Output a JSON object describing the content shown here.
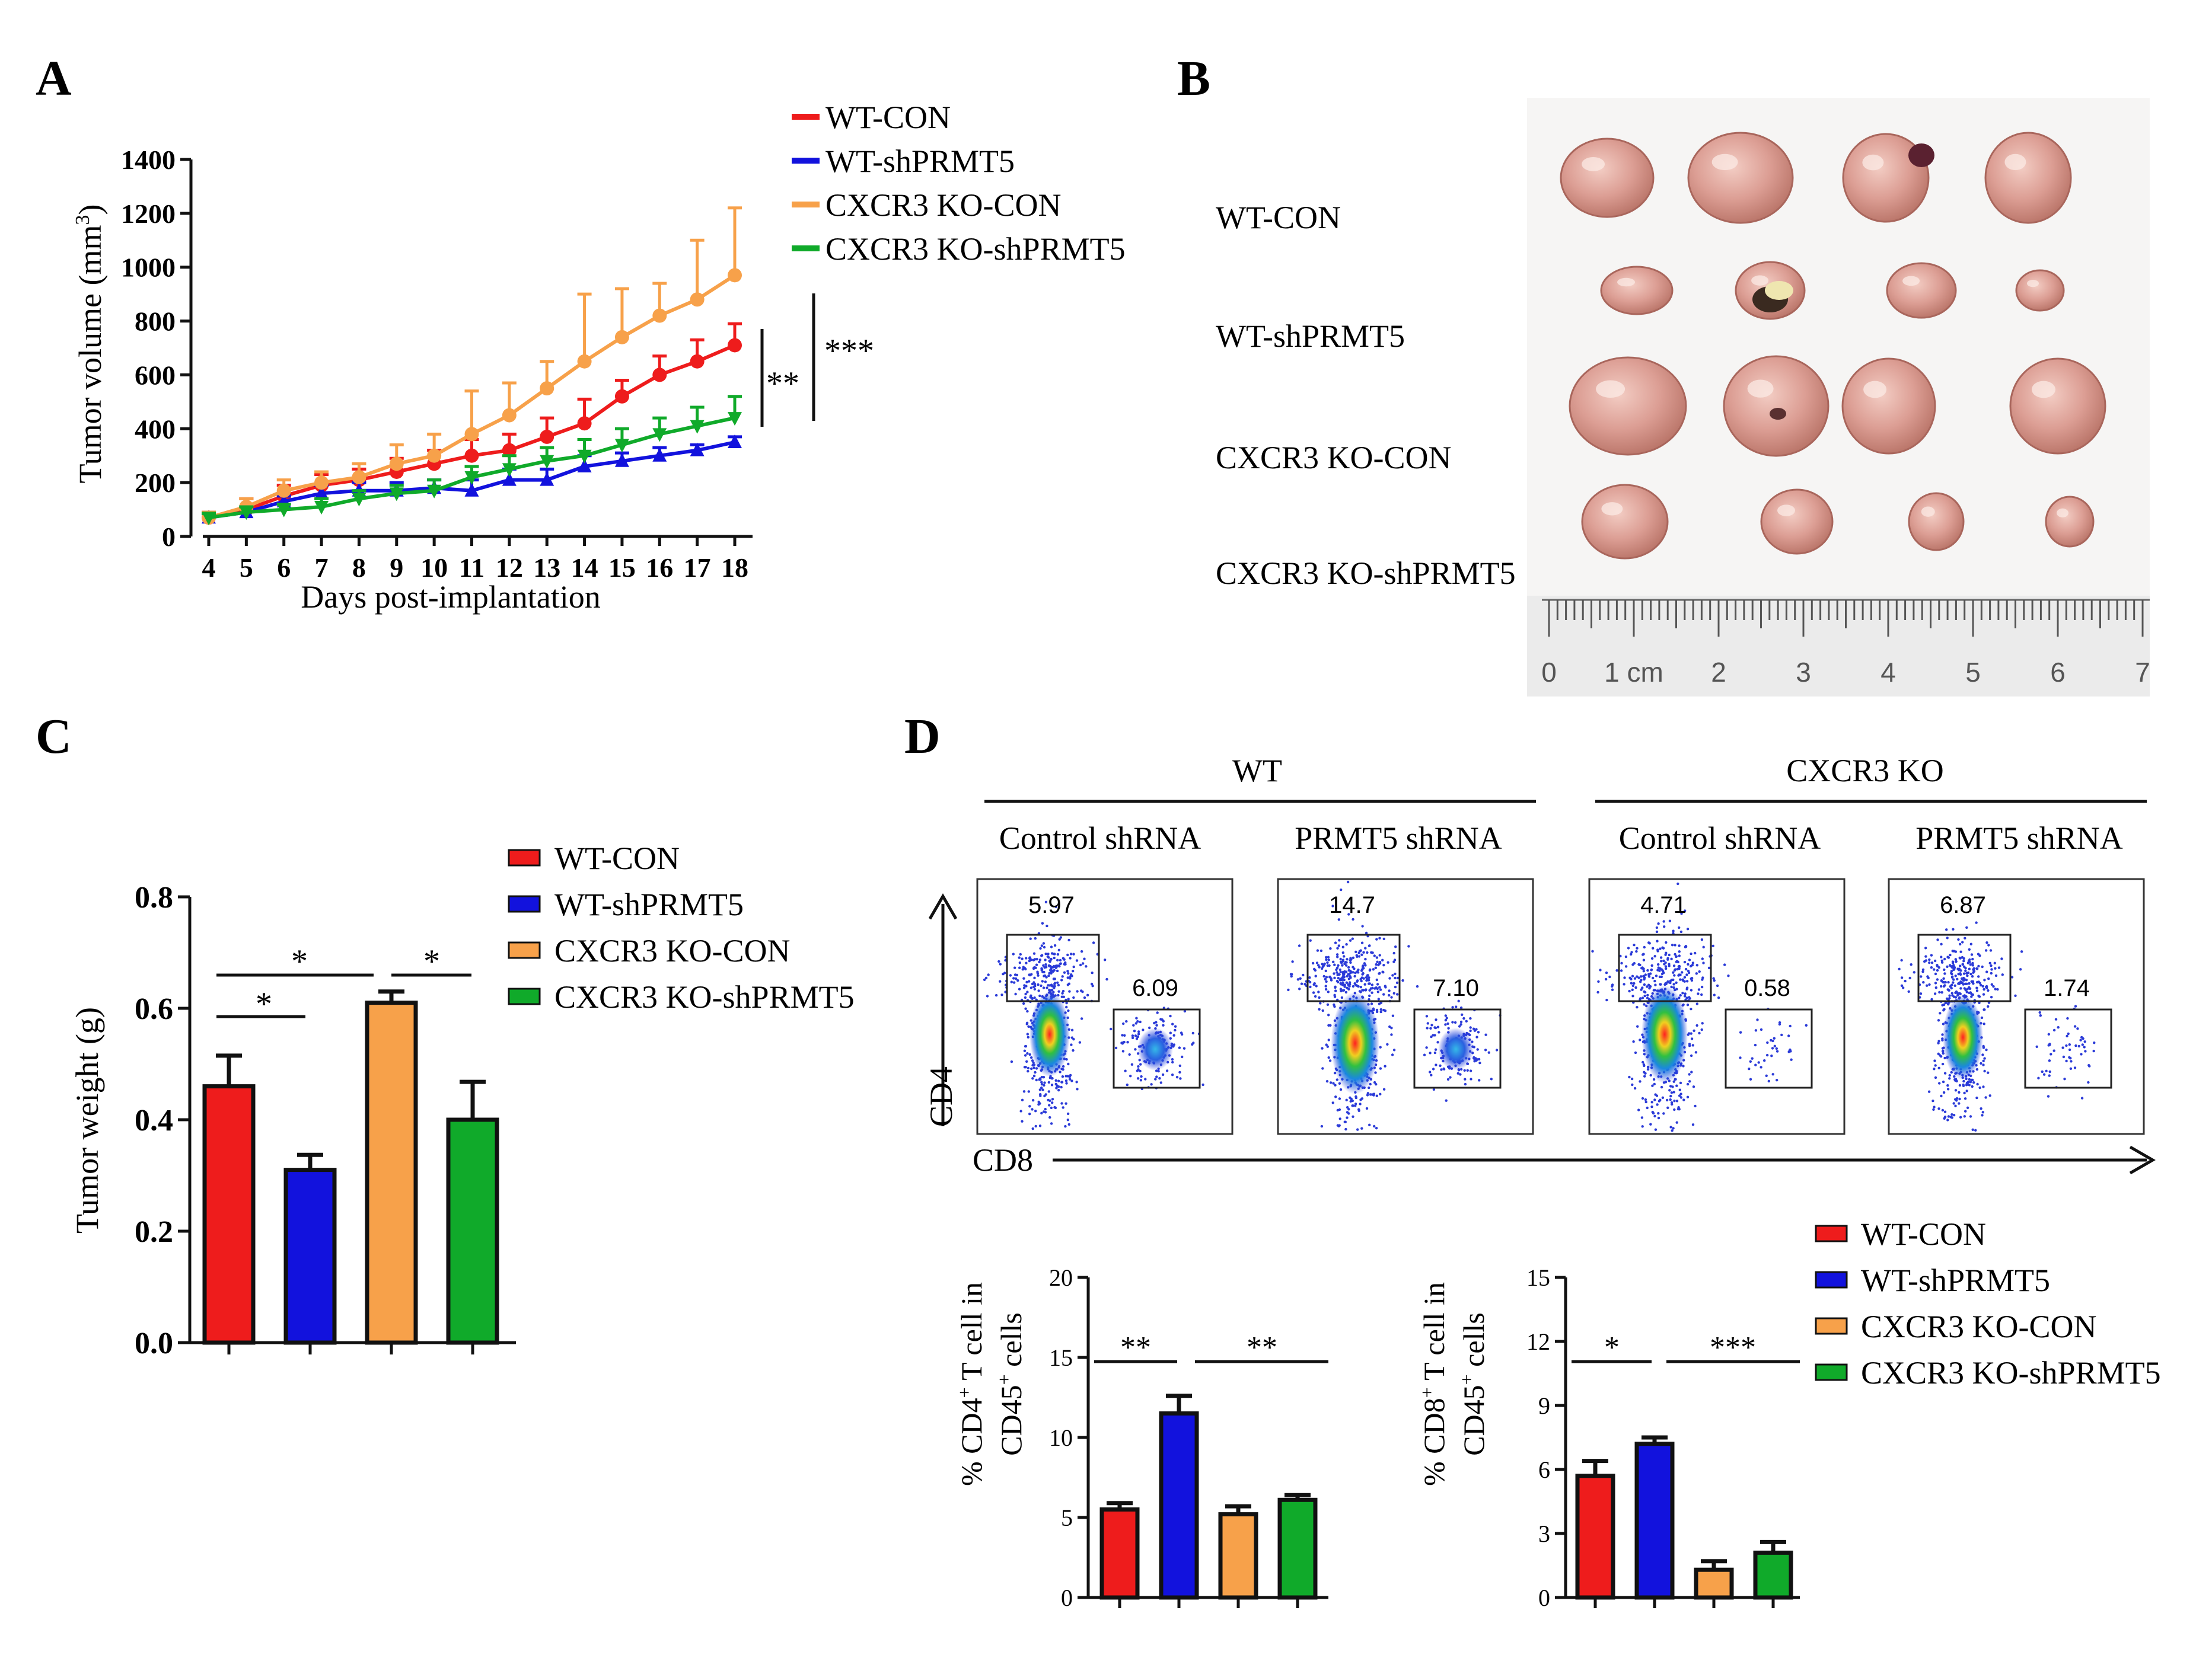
{
  "colors": {
    "wt_con": "#ee1c1c",
    "wt_sh": "#1212dd",
    "ko_con": "#f7a14a",
    "ko_sh": "#10aa2a",
    "axis": "#111111"
  },
  "panel_a": {
    "label": "A",
    "ylabel": "Tumor volume (mm",
    "ylabel_sup": "3",
    "ylabel_close": ")",
    "xlabel": "Days  post-implantation",
    "sig_inner": "**",
    "sig_outer": "***",
    "legend": [
      "WT-CON",
      "WT-shPRMT5",
      "CXCR3 KO-CON",
      "CXCR3 KO-shPRMT5"
    ]
  },
  "panel_b": {
    "label": "B",
    "rows": [
      "WT-CON",
      "WT-shPRMT5",
      "CXCR3 KO-CON",
      "CXCR3 KO-shPRMT5"
    ],
    "ruler_labels": [
      "0",
      "1 cm",
      "2",
      "3",
      "4",
      "5",
      "6",
      "7"
    ]
  },
  "panel_c": {
    "label": "C",
    "ylabel": "Tumor weight (g)",
    "sig": [
      "*",
      "*",
      "*"
    ],
    "legend": [
      "WT-CON",
      "WT-shPRMT5",
      "CXCR3 KO-CON",
      "CXCR3 KO-shPRMT5"
    ]
  },
  "panel_d": {
    "label": "D",
    "group_wt": "WT",
    "group_ko": "CXCR3 KO",
    "sub_labels": [
      "Control shRNA",
      "PRMT5 shRNA",
      "Control shRNA",
      "PRMT5 shRNA"
    ],
    "cd4_pct": [
      "5.97",
      "14.7",
      "4.71",
      "6.87"
    ],
    "cd8_pct": [
      "6.09",
      "7.10",
      "0.58",
      "1.74"
    ],
    "y_axis": "CD4",
    "x_axis": "CD8",
    "ylabel_cd4_a": "% CD4",
    "ylabel_cd4_b": " T cell in",
    "ylabel_cd8_a": "% CD8",
    "ylabel_cd8_b": " T cell in",
    "ylabel_line2_a": "CD45",
    "ylabel_line2_b": " cells",
    "sup_plus": "+",
    "sig_cd4": [
      "**",
      "**"
    ],
    "sig_cd8": [
      "*",
      "***"
    ],
    "legend": [
      "WT-CON",
      "WT-shPRMT5",
      "CXCR3 KO-CON",
      "CXCR3 KO-shPRMT5"
    ]
  },
  "chart_data": [
    {
      "id": "A",
      "type": "line",
      "xlabel": "Days  post-implantation",
      "ylabel": "Tumor volume (mm3)",
      "x": [
        4,
        5,
        6,
        7,
        8,
        9,
        10,
        11,
        12,
        13,
        14,
        15,
        16,
        17,
        18
      ],
      "ylim": [
        0,
        1400
      ],
      "yticks": [
        0,
        200,
        400,
        600,
        800,
        1000,
        1200,
        1400
      ],
      "series": [
        {
          "name": "WT-CON",
          "values": [
            70,
            100,
            150,
            190,
            210,
            240,
            270,
            300,
            320,
            370,
            420,
            520,
            600,
            650,
            710
          ],
          "errors": [
            20,
            40,
            40,
            40,
            40,
            50,
            50,
            60,
            60,
            70,
            90,
            60,
            70,
            80,
            80
          ]
        },
        {
          "name": "WT-shPRMT5",
          "values": [
            70,
            90,
            130,
            160,
            170,
            170,
            180,
            170,
            210,
            210,
            260,
            280,
            300,
            320,
            350
          ],
          "errors": [
            15,
            20,
            20,
            30,
            30,
            30,
            30,
            40,
            40,
            40,
            40,
            30,
            30,
            20,
            20
          ]
        },
        {
          "name": "CXCR3 KO-CON",
          "values": [
            70,
            110,
            170,
            200,
            220,
            270,
            300,
            380,
            450,
            550,
            650,
            740,
            820,
            880,
            970
          ],
          "errors": [
            20,
            30,
            40,
            40,
            50,
            70,
            80,
            160,
            120,
            100,
            250,
            180,
            120,
            220,
            250
          ]
        },
        {
          "name": "CXCR3 KO-shPRMT5",
          "values": [
            70,
            90,
            100,
            110,
            140,
            160,
            170,
            220,
            250,
            280,
            300,
            340,
            380,
            410,
            440
          ],
          "errors": [
            15,
            20,
            20,
            30,
            30,
            30,
            40,
            40,
            50,
            50,
            60,
            60,
            60,
            70,
            80
          ]
        }
      ]
    },
    {
      "id": "C",
      "type": "bar",
      "ylabel": "Tumor weight (g)",
      "categories": [
        "WT-CON",
        "WT-shPRMT5",
        "CXCR3 KO-CON",
        "CXCR3 KO-shPRMT5"
      ],
      "values": [
        0.46,
        0.31,
        0.61,
        0.4
      ],
      "errors": [
        0.055,
        0.027,
        0.02,
        0.068
      ],
      "ylim": [
        0,
        0.8
      ],
      "yticks": [
        "0.0",
        "0.2",
        "0.4",
        "0.6",
        "0.8"
      ]
    },
    {
      "id": "D-CD4",
      "type": "bar",
      "ylabel": "% CD4+ T cell in CD45+ cells",
      "categories": [
        "WT-CON",
        "WT-shPRMT5",
        "CXCR3 KO-CON",
        "CXCR3 KO-shPRMT5"
      ],
      "values": [
        5.5,
        11.5,
        5.2,
        6.1
      ],
      "errors": [
        0.4,
        1.1,
        0.5,
        0.3
      ],
      "ylim": [
        0,
        20
      ],
      "yticks": [
        "0",
        "5",
        "10",
        "15",
        "20"
      ]
    },
    {
      "id": "D-CD8",
      "type": "bar",
      "ylabel": "% CD8+ T cell in CD45+ cells",
      "categories": [
        "WT-CON",
        "WT-shPRMT5",
        "CXCR3 KO-CON",
        "CXCR3 KO-shPRMT5"
      ],
      "values": [
        5.7,
        7.2,
        1.3,
        2.1
      ],
      "errors": [
        0.7,
        0.3,
        0.4,
        0.5
      ],
      "ylim": [
        0,
        15
      ],
      "yticks": [
        "0",
        "3",
        "6",
        "9",
        "12",
        "15"
      ]
    }
  ]
}
